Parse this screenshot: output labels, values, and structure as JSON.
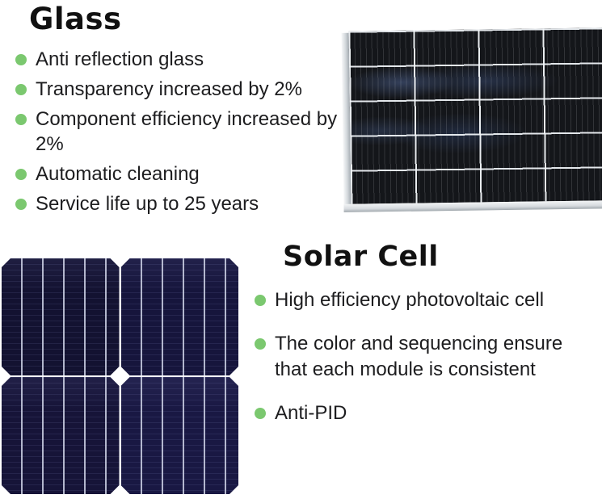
{
  "colors": {
    "background": "#ffffff",
    "bullet_green": "#7bc86f",
    "heading_text": "#111111",
    "body_text": "#1d1d1f",
    "panel_dark": "#14161a",
    "panel_frame_silver": "#d7dbdf",
    "solar_cell_navy": "#15143a"
  },
  "glass_section": {
    "title": "Glass",
    "bullet_icon": "green-dot",
    "items": [
      "Anti reflection glass",
      "Transparency increased by 2%",
      "Component efficiency increased by 2%",
      "Automatic cleaning",
      "Service life up to 25 years"
    ]
  },
  "solar_cell_section": {
    "title": "Solar Cell",
    "bullet_icon": "green-dot",
    "items": [
      "High efficiency photovoltaic cell",
      "The color and sequencing ensure that each module is consistent",
      "Anti-PID"
    ]
  },
  "figures": {
    "glass_panel_photo": "framed solar module glass close-up",
    "solar_cells_photo": "2x2 monocrystalline solar cells"
  }
}
